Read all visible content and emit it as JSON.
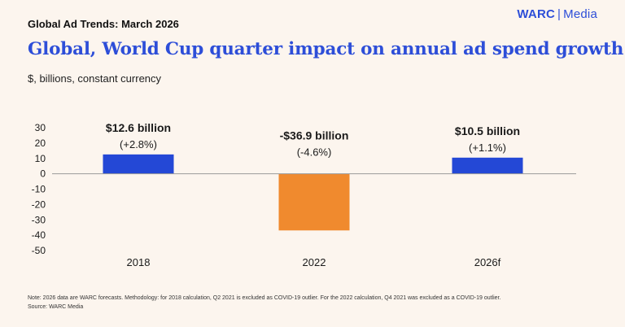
{
  "header": {
    "kicker": "Global Ad Trends: March 2026",
    "brand_name": "WARC",
    "brand_separator": "|",
    "brand_suffix": "Media",
    "title": "Global, World Cup quarter impact on annual ad spend growth",
    "subtitle": "$, billions, constant currency"
  },
  "colors": {
    "brand": "#2d4ed8",
    "positive_bar": "#2448d6",
    "negative_bar": "#f08a2e",
    "background": "#fcf5ee"
  },
  "chart_data": {
    "type": "bar",
    "title": "Global, World Cup quarter impact on annual ad spend growth",
    "xlabel": "",
    "ylabel": "$, billions, constant currency",
    "ylim": [
      -50,
      30
    ],
    "yticks": [
      30,
      20,
      10,
      0,
      -10,
      -20,
      -30,
      -40,
      -50
    ],
    "grid": false,
    "categories": [
      "2018",
      "2022",
      "2026f"
    ],
    "values": [
      12.6,
      -36.9,
      10.5
    ],
    "data_labels": [
      {
        "amount": "$12.6 billion",
        "pct": "(+2.8%)"
      },
      {
        "amount": "-$36.9 billion",
        "pct": "(-4.6%)"
      },
      {
        "amount": "$10.5 billion",
        "pct": "(+1.1%)"
      }
    ]
  },
  "footer": {
    "note": "Note: 2026 data are WARC forecasts. Methodology: for 2018 calculation, Q2 2021 is excluded as COVID-19 outlier. For the 2022 calculation, Q4 2021 was excluded as a COVID-19 outlier.",
    "source": "Source: WARC Media"
  }
}
